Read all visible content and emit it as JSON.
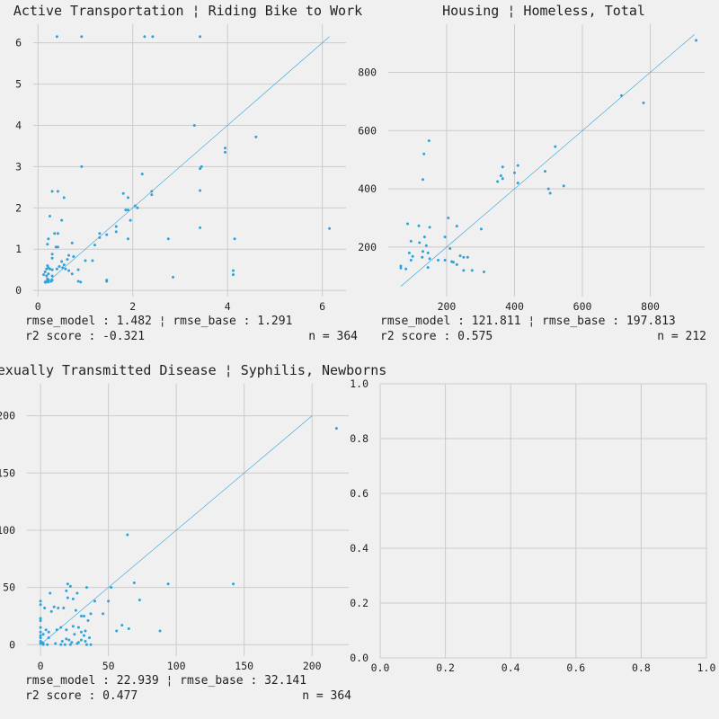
{
  "colors": {
    "background": "#f0f0f0",
    "grid": "#cbcbcb",
    "point": "#30a2da",
    "fit_line": "#30a2da"
  },
  "chart_data": [
    {
      "type": "scatter",
      "title": "Active Transportation ¦ Riding Bike to Work",
      "xlim": [
        -0.1,
        6.5
      ],
      "ylim": [
        -0.15,
        6.45
      ],
      "xticks": [
        0,
        2,
        4,
        6
      ],
      "yticks": [
        0,
        1,
        2,
        3,
        4,
        5,
        6
      ],
      "identity_line": [
        [
          0.15,
          0.15
        ],
        [
          6.15,
          6.15
        ]
      ],
      "grid": true,
      "annotations": {
        "rmse": "rmse_model : 1.482 ¦ rmse_base : 1.291",
        "r2": "r2 score : -0.321",
        "n": "n = 364"
      },
      "points": [
        [
          0.4,
          6.15
        ],
        [
          0.92,
          6.15
        ],
        [
          2.25,
          6.15
        ],
        [
          2.42,
          6.15
        ],
        [
          3.42,
          6.15
        ],
        [
          3.3,
          4.0
        ],
        [
          4.6,
          3.72
        ],
        [
          3.95,
          3.45
        ],
        [
          3.95,
          3.35
        ],
        [
          0.92,
          3.0
        ],
        [
          3.42,
          2.95
        ],
        [
          3.45,
          3.0
        ],
        [
          2.2,
          2.82
        ],
        [
          0.3,
          2.4
        ],
        [
          0.42,
          2.4
        ],
        [
          0.55,
          2.25
        ],
        [
          1.8,
          2.35
        ],
        [
          1.9,
          2.25
        ],
        [
          2.05,
          2.05
        ],
        [
          2.1,
          2.0
        ],
        [
          2.4,
          2.4
        ],
        [
          2.4,
          2.32
        ],
        [
          3.42,
          2.42
        ],
        [
          0.25,
          1.8
        ],
        [
          0.5,
          1.7
        ],
        [
          1.85,
          1.95
        ],
        [
          1.9,
          1.95
        ],
        [
          1.95,
          1.7
        ],
        [
          1.65,
          1.55
        ],
        [
          1.65,
          1.42
        ],
        [
          1.3,
          1.38
        ],
        [
          1.3,
          1.28
        ],
        [
          1.2,
          1.1
        ],
        [
          1.45,
          1.35
        ],
        [
          2.75,
          1.25
        ],
        [
          1.9,
          1.25
        ],
        [
          4.15,
          1.25
        ],
        [
          6.15,
          1.5
        ],
        [
          3.42,
          1.52
        ],
        [
          0.35,
          1.38
        ],
        [
          0.42,
          1.38
        ],
        [
          0.22,
          1.25
        ],
        [
          0.2,
          1.12
        ],
        [
          0.72,
          1.15
        ],
        [
          0.38,
          1.05
        ],
        [
          0.42,
          1.05
        ],
        [
          0.3,
          0.88
        ],
        [
          0.3,
          0.78
        ],
        [
          0.65,
          0.85
        ],
        [
          0.75,
          0.82
        ],
        [
          0.62,
          0.75
        ],
        [
          0.5,
          0.7
        ],
        [
          0.55,
          0.62
        ],
        [
          0.45,
          0.58
        ],
        [
          0.52,
          0.55
        ],
        [
          0.58,
          0.52
        ],
        [
          0.4,
          0.52
        ],
        [
          0.3,
          0.5
        ],
        [
          0.65,
          0.48
        ],
        [
          0.85,
          0.5
        ],
        [
          1.0,
          0.72
        ],
        [
          1.15,
          0.72
        ],
        [
          0.2,
          0.6
        ],
        [
          0.22,
          0.55
        ],
        [
          0.25,
          0.52
        ],
        [
          0.18,
          0.52
        ],
        [
          0.15,
          0.45
        ],
        [
          0.22,
          0.4
        ],
        [
          0.12,
          0.38
        ],
        [
          0.18,
          0.35
        ],
        [
          0.3,
          0.35
        ],
        [
          0.72,
          0.4
        ],
        [
          4.12,
          0.48
        ],
        [
          4.12,
          0.38
        ],
        [
          2.85,
          0.32
        ],
        [
          1.45,
          0.25
        ],
        [
          1.45,
          0.22
        ],
        [
          0.85,
          0.22
        ],
        [
          0.9,
          0.2
        ],
        [
          0.2,
          0.28
        ],
        [
          0.22,
          0.25
        ],
        [
          0.18,
          0.22
        ],
        [
          0.22,
          0.2
        ],
        [
          0.28,
          0.22
        ],
        [
          0.3,
          0.25
        ],
        [
          0.15,
          0.2
        ]
      ]
    },
    {
      "type": "scatter",
      "title": "Housing ¦ Homeless, Total",
      "xlim": [
        28,
        960
      ],
      "ylim": [
        30,
        965
      ],
      "xticks": [
        200,
        400,
        600,
        800
      ],
      "yticks": [
        200,
        400,
        600,
        800
      ],
      "identity_line": [
        [
          65,
          65
        ],
        [
          930,
          930
        ]
      ],
      "grid": true,
      "annotations": {
        "rmse": "rmse_model : 121.811 ¦ rmse_base : 197.813",
        "r2": "r2 score : 0.575",
        "n": "n = 212"
      },
      "points": [
        [
          935,
          910
        ],
        [
          715,
          720
        ],
        [
          780,
          695
        ],
        [
          148,
          565
        ],
        [
          133,
          520
        ],
        [
          130,
          432
        ],
        [
          520,
          545
        ],
        [
          490,
          460
        ],
        [
          400,
          455
        ],
        [
          410,
          480
        ],
        [
          365,
          475
        ],
        [
          360,
          445
        ],
        [
          350,
          425
        ],
        [
          365,
          435
        ],
        [
          410,
          420
        ],
        [
          500,
          400
        ],
        [
          505,
          385
        ],
        [
          545,
          410
        ],
        [
          205,
          300
        ],
        [
          230,
          272
        ],
        [
          302,
          262
        ],
        [
          85,
          280
        ],
        [
          118,
          273
        ],
        [
          150,
          268
        ],
        [
          135,
          235
        ],
        [
          195,
          235
        ],
        [
          95,
          220
        ],
        [
          120,
          215
        ],
        [
          140,
          205
        ],
        [
          210,
          195
        ],
        [
          130,
          185
        ],
        [
          90,
          180
        ],
        [
          145,
          180
        ],
        [
          240,
          170
        ],
        [
          250,
          165
        ],
        [
          262,
          165
        ],
        [
          100,
          168
        ],
        [
          128,
          165
        ],
        [
          150,
          160
        ],
        [
          175,
          155
        ],
        [
          195,
          155
        ],
        [
          215,
          150
        ],
        [
          95,
          155
        ],
        [
          65,
          135
        ],
        [
          65,
          128
        ],
        [
          80,
          125
        ],
        [
          145,
          130
        ],
        [
          230,
          140
        ],
        [
          250,
          120
        ],
        [
          275,
          120
        ],
        [
          310,
          115
        ],
        [
          220,
          148
        ]
      ]
    },
    {
      "type": "scatter",
      "title": "Sexually Transmitted Disease ¦ Syphilis, Newborns",
      "xlim": [
        -10,
        227
      ],
      "ylim": [
        -10,
        228
      ],
      "xticks": [
        0,
        50,
        100,
        150,
        200
      ],
      "yticks": [
        0,
        50,
        100,
        150,
        200
      ],
      "identity_line": [
        [
          0,
          0
        ],
        [
          200,
          200
        ]
      ],
      "grid": true,
      "annotations": {
        "rmse": "rmse_model : 22.939 ¦ rmse_base : 32.141",
        "r2": "r2 score : 0.477",
        "n": "n = 364"
      },
      "points": [
        [
          218,
          189
        ],
        [
          64,
          96
        ],
        [
          94,
          53
        ],
        [
          142,
          53
        ],
        [
          69,
          54
        ],
        [
          52,
          50
        ],
        [
          34,
          50
        ],
        [
          20,
          53
        ],
        [
          22,
          51
        ],
        [
          19,
          47
        ],
        [
          7,
          45
        ],
        [
          27,
          45
        ],
        [
          0,
          38
        ],
        [
          0,
          35
        ],
        [
          20,
          41
        ],
        [
          24,
          40
        ],
        [
          40,
          38
        ],
        [
          50,
          38
        ],
        [
          73,
          39
        ],
        [
          10,
          33
        ],
        [
          13,
          32
        ],
        [
          17,
          32
        ],
        [
          3,
          32
        ],
        [
          26,
          30
        ],
        [
          8,
          29
        ],
        [
          37,
          27
        ],
        [
          32,
          25
        ],
        [
          30,
          25
        ],
        [
          46,
          27
        ],
        [
          35,
          21
        ],
        [
          0,
          23
        ],
        [
          0,
          21
        ],
        [
          60,
          17
        ],
        [
          65,
          14
        ],
        [
          24,
          16
        ],
        [
          15,
          15
        ],
        [
          28,
          15
        ],
        [
          0,
          15
        ],
        [
          12,
          13
        ],
        [
          19,
          13
        ],
        [
          6,
          11
        ],
        [
          4,
          13
        ],
        [
          33,
          12
        ],
        [
          56,
          12
        ],
        [
          88,
          12
        ],
        [
          30,
          11
        ],
        [
          0,
          11
        ],
        [
          2,
          9
        ],
        [
          25,
          9
        ],
        [
          32,
          8
        ],
        [
          36,
          6
        ],
        [
          0,
          8
        ],
        [
          0,
          6
        ],
        [
          6,
          6
        ],
        [
          19,
          5
        ],
        [
          21,
          4
        ],
        [
          30,
          4
        ],
        [
          33,
          3
        ],
        [
          16,
          3
        ],
        [
          0,
          3
        ],
        [
          28,
          2
        ],
        [
          23,
          2
        ],
        [
          1,
          2
        ],
        [
          0,
          1
        ],
        [
          2,
          1
        ],
        [
          11,
          1
        ],
        [
          18,
          0
        ],
        [
          5,
          0
        ],
        [
          2,
          0
        ],
        [
          15,
          0
        ],
        [
          22,
          0
        ],
        [
          27,
          1
        ],
        [
          34,
          0
        ],
        [
          37,
          0
        ]
      ]
    },
    {
      "type": "scatter",
      "title": "",
      "xlim": [
        0,
        1
      ],
      "ylim": [
        0,
        1
      ],
      "xticks": [
        0.0,
        0.2,
        0.4,
        0.6,
        0.8,
        1.0
      ],
      "yticks": [
        0.0,
        0.2,
        0.4,
        0.6,
        0.8,
        1.0
      ],
      "tick_decimals": 1,
      "grid": true,
      "points": []
    }
  ]
}
